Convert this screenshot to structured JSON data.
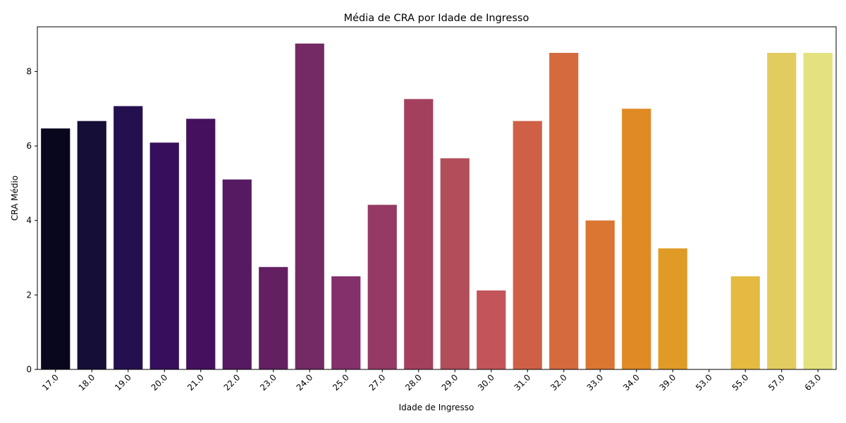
{
  "chart_data": {
    "type": "bar",
    "title": "Média de CRA por Idade de Ingresso",
    "xlabel": "Idade de Ingresso",
    "ylabel": "CRA Médio",
    "ylim": [
      0,
      9.2
    ],
    "yticks": [
      "0",
      "2",
      "4",
      "6",
      "8"
    ],
    "categories": [
      "17.0",
      "18.0",
      "19.0",
      "20.0",
      "21.0",
      "22.0",
      "23.0",
      "24.0",
      "25.0",
      "27.0",
      "28.0",
      "29.0",
      "30.0",
      "31.0",
      "32.0",
      "33.0",
      "34.0",
      "39.0",
      "53.0",
      "55.0",
      "57.0",
      "63.0"
    ],
    "values": [
      6.47,
      6.67,
      7.07,
      6.09,
      6.73,
      5.1,
      2.75,
      8.75,
      2.5,
      4.42,
      7.26,
      5.67,
      2.12,
      6.67,
      8.5,
      4.0,
      7.0,
      3.25,
      0.0,
      2.5,
      8.5,
      8.5
    ],
    "colors": [
      "#08071e",
      "#150e37",
      "#24104f",
      "#350f5b",
      "#45115e",
      "#551a62",
      "#631f62",
      "#742a64",
      "#84306a",
      "#943a64",
      "#a3405e",
      "#b24d5a",
      "#c2545a",
      "#cf6045",
      "#d46a3e",
      "#da7631",
      "#df8a24",
      "#e09b27",
      "#e2ae37",
      "#e4bb40",
      "#e2cc5f",
      "#e3e27f"
    ],
    "grid": false,
    "legend": "none"
  }
}
